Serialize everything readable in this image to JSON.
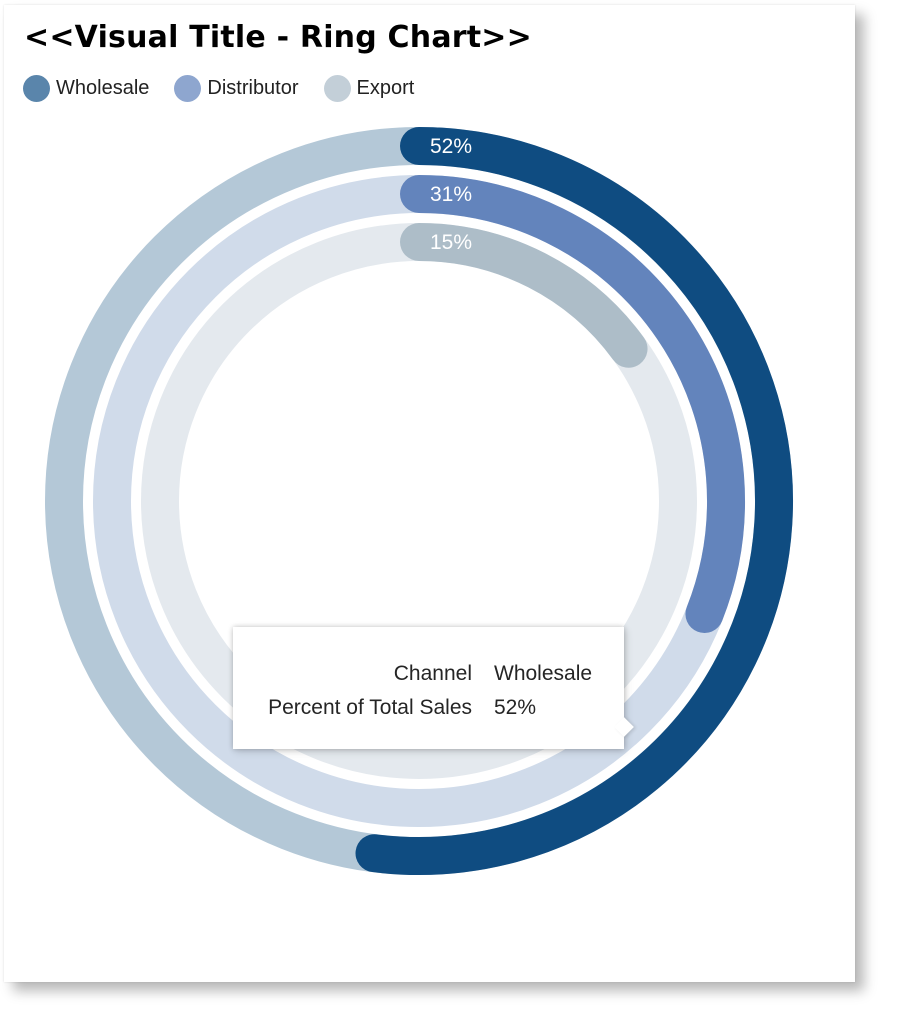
{
  "chart_data": {
    "type": "radial-bar",
    "title": "<<Visual Title - Ring Chart>>",
    "legend_position": "top-left",
    "categories": [
      "Wholesale",
      "Distributor",
      "Export"
    ],
    "values": [
      52,
      31,
      15
    ],
    "value_labels": [
      "52%",
      "31%",
      "15%"
    ],
    "value_max": 100,
    "colors": [
      "#0f4c81",
      "#6384bc",
      "#adbdc8"
    ],
    "track_colors": [
      "#b4c8d7",
      "#d0dbea",
      "#e4e9ee"
    ],
    "legend_colors": [
      "#5a85ab",
      "#8ea6cf",
      "#c3cfd8"
    ]
  },
  "tooltip": {
    "key1": "Channel",
    "val1": "Wholesale",
    "key2": "Percent of Total Sales",
    "val2": "52%"
  }
}
